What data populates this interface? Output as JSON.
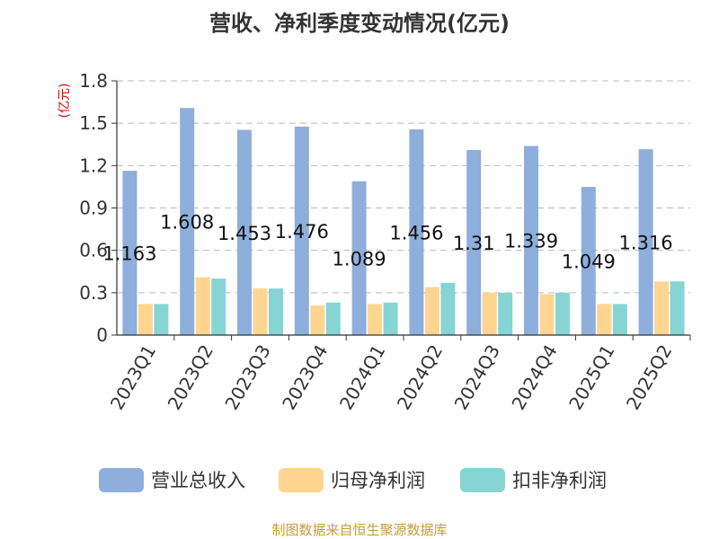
{
  "chart_data": {
    "type": "bar",
    "title": "营收、净利季度变动情况(亿元)",
    "unit_label": "(亿元)",
    "categories": [
      "2023Q1",
      "2023Q2",
      "2023Q3",
      "2023Q4",
      "2024Q1",
      "2024Q2",
      "2024Q3",
      "2024Q4",
      "2025Q1",
      "2025Q2"
    ],
    "series": [
      {
        "name": "营业总收入",
        "color": "#8eaedb",
        "values": [
          1.163,
          1.608,
          1.453,
          1.476,
          1.089,
          1.456,
          1.31,
          1.339,
          1.049,
          1.316
        ]
      },
      {
        "name": "归母净利润",
        "color": "#ffd591",
        "values": [
          0.22,
          0.41,
          0.33,
          0.21,
          0.22,
          0.34,
          0.3,
          0.29,
          0.22,
          0.38
        ]
      },
      {
        "name": "扣非净利润",
        "color": "#87d4d4",
        "values": [
          0.22,
          0.4,
          0.33,
          0.23,
          0.23,
          0.37,
          0.3,
          0.3,
          0.22,
          0.38
        ]
      }
    ],
    "data_labels": [
      "1.163",
      "1.608",
      "1.453",
      "1.476",
      "1.089",
      "1.456",
      "1.31",
      "1.339",
      "1.049",
      "1.316"
    ],
    "yticks": [
      "0",
      "0.3",
      "0.6",
      "0.9",
      "1.2",
      "1.5",
      "1.8"
    ],
    "ylim": [
      0,
      1.8
    ],
    "grid": true,
    "legend_position": "bottom"
  },
  "footer": {
    "source": "制图数据来自恒生聚源数据库"
  }
}
